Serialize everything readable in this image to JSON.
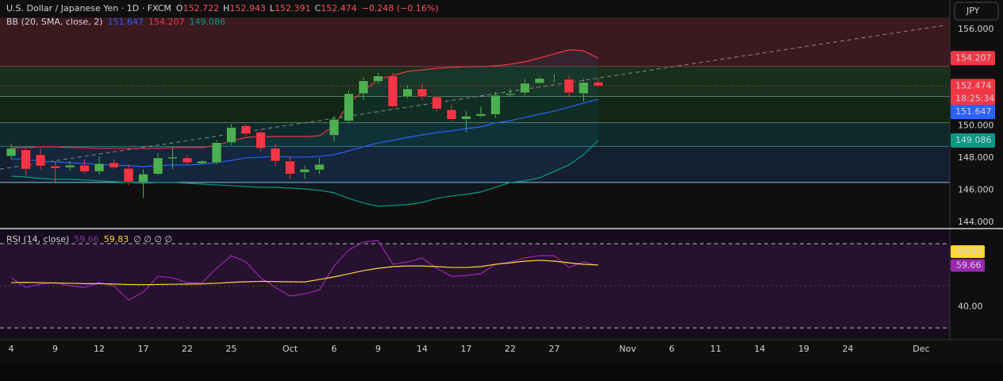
{
  "chart_data": [
    {
      "type": "candlestick",
      "title": "U.S. Dollar / Japanese Yen · 1D · FXCM",
      "ohlc_labels": [
        "O",
        "H",
        "L",
        "C"
      ],
      "change": "−0.248 (−0.16%)",
      "currency": "JPY",
      "countdown": "18:25:34",
      "up_color": "#4caf50",
      "down_color": "#f23645",
      "xlim": [
        -0.76,
        63.95
      ],
      "xticks": [
        {
          "value": 0,
          "label": "4"
        },
        {
          "value": 3,
          "label": "9"
        },
        {
          "value": 6,
          "label": "12"
        },
        {
          "value": 9,
          "label": "17"
        },
        {
          "value": 12,
          "label": "22"
        },
        {
          "value": 15,
          "label": "25"
        },
        {
          "value": 19,
          "label": "Oct"
        },
        {
          "value": 22,
          "label": "6"
        },
        {
          "value": 25,
          "label": "9"
        },
        {
          "value": 28,
          "label": "14"
        },
        {
          "value": 31,
          "label": "17"
        },
        {
          "value": 34,
          "label": "22"
        },
        {
          "value": 37,
          "label": "27"
        },
        {
          "value": 42,
          "label": "Nov"
        },
        {
          "value": 45,
          "label": "6"
        },
        {
          "value": 48,
          "label": "11"
        },
        {
          "value": 51,
          "label": "14"
        },
        {
          "value": 54,
          "label": "19"
        },
        {
          "value": 57,
          "label": "24"
        },
        {
          "value": 62,
          "label": "Dec"
        }
      ],
      "ylim": [
        143.65,
        156.74
      ],
      "yticks": [
        {
          "value": 156,
          "label": "156.000"
        },
        {
          "value": 150,
          "label": "150.000"
        },
        {
          "value": 148,
          "label": "148.000"
        },
        {
          "value": 146,
          "label": "146.000"
        },
        {
          "value": 144,
          "label": "144.000"
        }
      ],
      "grid": false,
      "open": [
        148.1,
        148.5,
        148.2,
        147.5,
        147.4,
        147.55,
        147.15,
        147.7,
        147.35,
        146.5,
        147.0,
        147.95,
        148.0,
        147.65,
        147.7,
        148.95,
        150.0,
        149.6,
        148.6,
        147.8,
        147.1,
        147.25,
        149.4,
        150.3,
        152.0,
        152.75,
        153.1,
        151.8,
        152.3,
        151.8,
        151.0,
        150.4,
        150.6,
        150.7,
        151.9,
        152.05,
        152.65,
        152.85,
        152.9,
        152.0,
        152.722
      ],
      "high": [
        148.9,
        148.6,
        148.6,
        147.8,
        147.8,
        147.9,
        148.1,
        147.9,
        147.6,
        147.3,
        148.3,
        148.6,
        148.2,
        147.9,
        149.1,
        150.1,
        150.1,
        149.7,
        148.9,
        148.1,
        147.5,
        148.0,
        150.6,
        152.2,
        153.0,
        153.3,
        153.3,
        152.5,
        152.6,
        151.9,
        151.3,
        150.9,
        151.2,
        152.1,
        152.3,
        152.9,
        153.1,
        153.2,
        153.1,
        152.9,
        152.943
      ],
      "low": [
        147.9,
        146.9,
        147.3,
        146.4,
        147.2,
        147.0,
        146.95,
        147.3,
        146.3,
        145.5,
        146.9,
        147.3,
        147.6,
        147.6,
        147.6,
        148.8,
        149.4,
        148.4,
        147.5,
        146.7,
        146.7,
        147.0,
        149.0,
        150.2,
        151.6,
        152.6,
        151.1,
        151.7,
        151.6,
        150.9,
        150.3,
        149.6,
        150.5,
        150.5,
        151.8,
        151.9,
        152.6,
        152.7,
        151.8,
        151.5,
        152.391
      ],
      "close": [
        148.6,
        147.3,
        147.5,
        147.35,
        147.55,
        147.15,
        147.65,
        147.4,
        146.5,
        147.0,
        148.0,
        148.05,
        147.7,
        147.8,
        148.95,
        149.9,
        149.5,
        148.6,
        147.8,
        147.0,
        147.3,
        147.6,
        150.4,
        152.0,
        152.8,
        153.1,
        151.2,
        152.3,
        151.8,
        151.05,
        150.4,
        150.6,
        150.75,
        151.9,
        152.0,
        152.65,
        152.95,
        152.9,
        152.05,
        152.7,
        152.474
      ],
      "indicator": "BB (20, SMA, close, 2)",
      "bands": [
        {
          "color": "#2962ff",
          "values": [
            147.95,
            147.9,
            147.8,
            147.75,
            147.7,
            147.65,
            147.6,
            147.56,
            147.51,
            147.46,
            147.51,
            147.56,
            147.56,
            147.6,
            147.7,
            147.85,
            148.0,
            148.05,
            148.1,
            148.05,
            148.05,
            148.1,
            148.2,
            148.44,
            148.69,
            148.94,
            149.09,
            149.28,
            149.43,
            149.58,
            149.68,
            149.83,
            149.93,
            150.17,
            150.32,
            150.52,
            150.72,
            150.91,
            151.16,
            151.41,
            151.647
          ]
        },
        {
          "color": "#f23645",
          "values": [
            148.64,
            148.64,
            148.69,
            148.69,
            148.64,
            148.64,
            148.6,
            148.6,
            148.6,
            148.6,
            148.6,
            148.64,
            148.64,
            148.64,
            148.79,
            149.04,
            149.28,
            149.33,
            149.33,
            149.33,
            149.33,
            149.38,
            150.0,
            151.4,
            152.15,
            152.89,
            153.14,
            153.38,
            153.48,
            153.58,
            153.63,
            153.68,
            153.68,
            153.73,
            153.83,
            153.98,
            154.22,
            154.47,
            154.72,
            154.67,
            154.207
          ]
        },
        {
          "color": "#089981",
          "values": [
            146.86,
            146.81,
            146.72,
            146.67,
            146.67,
            146.62,
            146.57,
            146.52,
            146.47,
            146.42,
            146.47,
            146.47,
            146.42,
            146.37,
            146.32,
            146.27,
            146.22,
            146.17,
            146.17,
            146.12,
            146.07,
            145.98,
            145.83,
            145.48,
            145.19,
            144.99,
            145.04,
            145.09,
            145.23,
            145.48,
            145.63,
            145.73,
            145.88,
            146.17,
            146.47,
            146.57,
            146.76,
            147.16,
            147.56,
            148.2,
            149.086
          ]
        }
      ],
      "levels": [
        {
          "value": 153.68,
          "color": "#d05a6a",
          "fill": "#3a1a20"
        },
        {
          "value": 151.8,
          "color": "#9ccc9c",
          "fill": "#18301c"
        },
        {
          "value": 150.17,
          "color": "#9ccc9c",
          "fill": "#112616"
        },
        {
          "value": 148.69,
          "color": "#6cc4c4",
          "fill": "#0f2a2c"
        },
        {
          "value": 146.47,
          "color": "#8cc4f0",
          "fill": "#141f30"
        }
      ],
      "trend_line": {
        "x": [
          -0.76,
          63.6
        ],
        "y": [
          147.3,
          156.25
        ],
        "color": "#8a8a8a"
      }
    },
    {
      "type": "line",
      "title": "RSI (14, close)",
      "flags": "∅ ∅ ∅ ∅",
      "ylim": [
        25.5,
        76.4
      ],
      "yticks": [
        {
          "value": 40,
          "label": "40.00"
        }
      ],
      "levels": [
        70,
        50,
        30
      ],
      "series": [
        {
          "color": "#9c27b0",
          "values": [
            53.8,
            49.2,
            50.8,
            51.5,
            50.0,
            49.2,
            51.5,
            50.0,
            43.2,
            47.0,
            54.5,
            53.8,
            51.5,
            51.5,
            58.3,
            64.3,
            61.3,
            53.8,
            49.2,
            45.1,
            46.2,
            48.1,
            59.4,
            67.0,
            70.8,
            71.5,
            60.2,
            61.3,
            63.2,
            58.3,
            54.5,
            54.9,
            55.7,
            60.2,
            61.3,
            63.2,
            64.3,
            64.3,
            58.7,
            61.3,
            59.66
          ]
        },
        {
          "color": "#fdd835",
          "values": [
            51.5,
            51.6,
            51.5,
            51.3,
            51.2,
            51.0,
            51.0,
            50.8,
            50.6,
            50.5,
            50.6,
            50.7,
            50.8,
            50.9,
            51.2,
            51.6,
            51.9,
            52.1,
            52.0,
            51.9,
            51.8,
            53.0,
            54.2,
            55.7,
            57.2,
            58.3,
            59.1,
            59.4,
            59.4,
            59.1,
            58.7,
            58.7,
            59.1,
            60.2,
            60.9,
            61.7,
            62.1,
            61.7,
            60.9,
            60.2,
            59.83
          ]
        }
      ]
    }
  ]
}
